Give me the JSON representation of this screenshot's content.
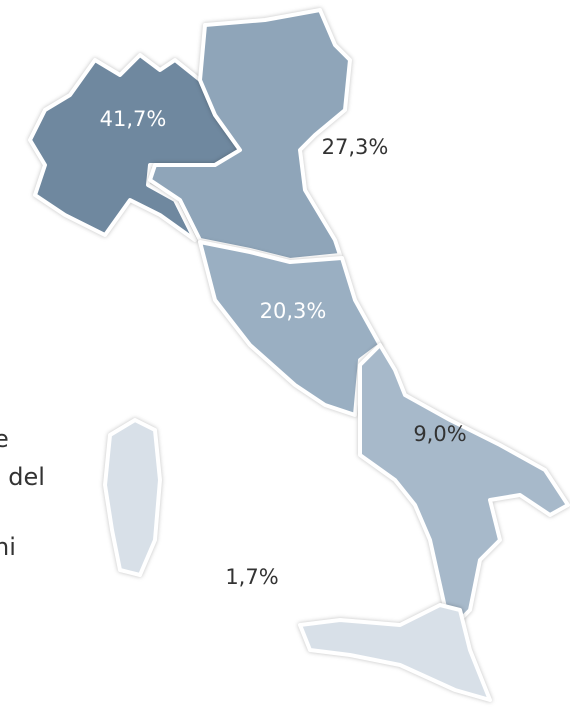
{
  "regions": [
    {
      "label": "41,7%",
      "value": 41.7,
      "color": "#6f889f"
    },
    {
      "label": "27,3%",
      "value": 27.3,
      "color": "#8fa5b9"
    },
    {
      "label": "20,3%",
      "value": 20.3,
      "color": "#9aafc2"
    },
    {
      "label": "9,0%",
      "value": 9.0,
      "color": "#a7b9ca"
    },
    {
      "label": "1,7%",
      "value": 1.7,
      "color": "#d8e0e8"
    }
  ],
  "fragments": [
    "e",
    "i del",
    "ni"
  ]
}
